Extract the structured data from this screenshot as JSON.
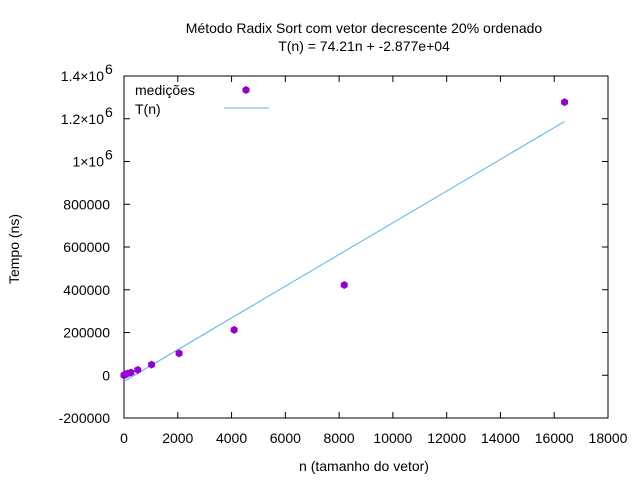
{
  "chart_data": {
    "type": "scatter",
    "title": "Método Radix Sort com vetor decrescente 20% ordenado",
    "subtitle": "T(n) = 74.21n + -2.877e+04",
    "xlabel": "n (tamanho do vetor)",
    "ylabel": "Tempo (ns)",
    "xlim": [
      0,
      18000
    ],
    "ylim": [
      -200000,
      1400000
    ],
    "grid": false,
    "legend_position": "top-left",
    "x_ticks": [
      {
        "value": 0,
        "label": "0"
      },
      {
        "value": 2000,
        "label": "2000"
      },
      {
        "value": 4000,
        "label": "4000"
      },
      {
        "value": 6000,
        "label": "6000"
      },
      {
        "value": 8000,
        "label": "8000"
      },
      {
        "value": 10000,
        "label": "10000"
      },
      {
        "value": 12000,
        "label": "12000"
      },
      {
        "value": 14000,
        "label": "14000"
      },
      {
        "value": 16000,
        "label": "16000"
      },
      {
        "value": 18000,
        "label": "18000"
      }
    ],
    "y_ticks": [
      {
        "value": -200000,
        "label": "-200000"
      },
      {
        "value": 0,
        "label": "0"
      },
      {
        "value": 200000,
        "label": "200000"
      },
      {
        "value": 400000,
        "label": "400000"
      },
      {
        "value": 600000,
        "label": "600000"
      },
      {
        "value": 800000,
        "label": "800000"
      },
      {
        "value": 1000000,
        "label": "1×10",
        "exp": "6"
      },
      {
        "value": 1200000,
        "label": "1.2×10",
        "exp": "6"
      },
      {
        "value": 1400000,
        "label": "1.4×10",
        "exp": "6"
      }
    ],
    "series": [
      {
        "name": "medições",
        "kind": "points",
        "color": "#9400d3",
        "points": [
          {
            "x": 1,
            "y": 0
          },
          {
            "x": 2,
            "y": 300
          },
          {
            "x": 4,
            "y": 500
          },
          {
            "x": 8,
            "y": 800
          },
          {
            "x": 16,
            "y": 1300
          },
          {
            "x": 32,
            "y": 2500
          },
          {
            "x": 64,
            "y": 4500
          },
          {
            "x": 128,
            "y": 7500
          },
          {
            "x": 256,
            "y": 13000
          },
          {
            "x": 512,
            "y": 25000
          },
          {
            "x": 1024,
            "y": 50000
          },
          {
            "x": 2048,
            "y": 102000
          },
          {
            "x": 4096,
            "y": 212000
          },
          {
            "x": 8192,
            "y": 422000
          },
          {
            "x": 16384,
            "y": 1278000
          }
        ]
      },
      {
        "name": "T(n)",
        "kind": "line",
        "color": "#56b4e9",
        "points": [
          {
            "x": 1,
            "y": -28696
          },
          {
            "x": 16384,
            "y": 1187087
          }
        ]
      }
    ]
  }
}
